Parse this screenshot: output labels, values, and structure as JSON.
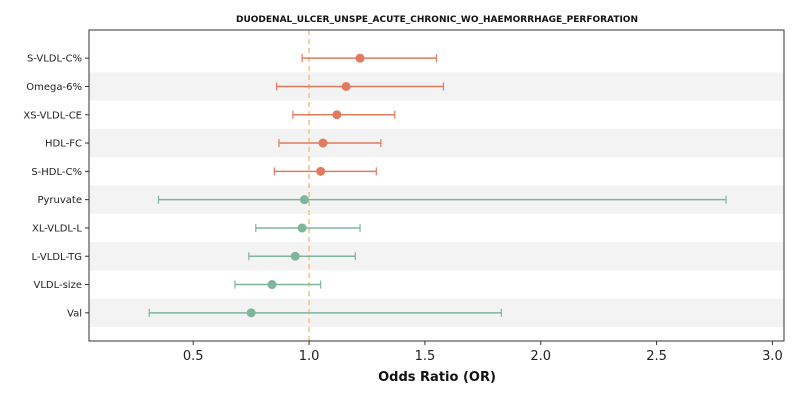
{
  "chart_data": {
    "type": "forest",
    "title": "DUODENAL_ULCER_UNSPE_ACUTE_CHRONIC_WO_HAEMORRHAGE_PERFORATION",
    "xlabel": "Odds Ratio (OR)",
    "xlim": [
      0.05,
      3.05
    ],
    "xticks": [
      0.5,
      1.0,
      1.5,
      2.0,
      2.5,
      3.0
    ],
    "xtick_labels": [
      "0.5",
      "1.0",
      "1.5",
      "2.0",
      "2.5",
      "3.0"
    ],
    "reference_line": 1.0,
    "grid": false,
    "colors": {
      "positive": "#e07b5f",
      "negative": "#7fb59a",
      "reference": "#f5c27a",
      "band": "#f3f3f3"
    },
    "rows": [
      {
        "label": "S-VLDL-C%",
        "or": 1.22,
        "lo": 0.97,
        "hi": 1.55,
        "group": "positive"
      },
      {
        "label": "Omega-6%",
        "or": 1.16,
        "lo": 0.86,
        "hi": 1.58,
        "group": "positive"
      },
      {
        "label": "XS-VLDL-CE",
        "or": 1.12,
        "lo": 0.93,
        "hi": 1.37,
        "group": "positive"
      },
      {
        "label": "HDL-FC",
        "or": 1.06,
        "lo": 0.87,
        "hi": 1.31,
        "group": "positive"
      },
      {
        "label": "S-HDL-C%",
        "or": 1.05,
        "lo": 0.85,
        "hi": 1.29,
        "group": "positive"
      },
      {
        "label": "Pyruvate",
        "or": 0.98,
        "lo": 0.35,
        "hi": 2.8,
        "group": "negative"
      },
      {
        "label": "XL-VLDL-L",
        "or": 0.97,
        "lo": 0.77,
        "hi": 1.22,
        "group": "negative"
      },
      {
        "label": "L-VLDL-TG",
        "or": 0.94,
        "lo": 0.74,
        "hi": 1.2,
        "group": "negative"
      },
      {
        "label": "VLDL-size",
        "or": 0.84,
        "lo": 0.68,
        "hi": 1.05,
        "group": "negative"
      },
      {
        "label": "Val",
        "or": 0.75,
        "lo": 0.31,
        "hi": 1.83,
        "group": "negative"
      }
    ]
  }
}
